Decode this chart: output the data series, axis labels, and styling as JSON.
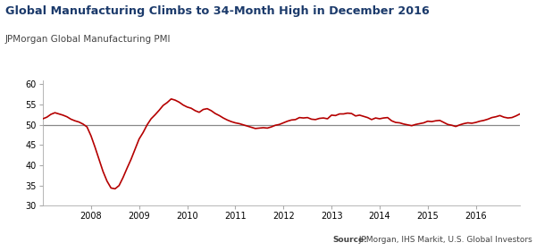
{
  "title": "Global Manufacturing Climbs to 34-Month High in December 2016",
  "subtitle": "JPMorgan Global Manufacturing PMI",
  "source_bold": "Source:",
  "source_rest": " JPMorgan, IHS Markit, U.S. Global Investors",
  "title_color": "#1b3a6b",
  "subtitle_color": "#444444",
  "source_color": "#444444",
  "line_color": "#b50000",
  "hline_color": "#888888",
  "hline_y": 50,
  "background_color": "#ffffff",
  "ylim": [
    30,
    61
  ],
  "yticks": [
    30,
    35,
    40,
    45,
    50,
    55,
    60
  ],
  "x_labels": [
    "2008",
    "2009",
    "2010",
    "2011",
    "2012",
    "2013",
    "2014",
    "2015",
    "2016"
  ],
  "pmi_data": [
    51.5,
    51.9,
    52.6,
    53.0,
    52.7,
    52.4,
    52.0,
    51.4,
    51.0,
    50.7,
    50.2,
    49.5,
    47.3,
    44.5,
    41.5,
    38.5,
    36.1,
    34.4,
    34.2,
    35.0,
    37.0,
    39.3,
    41.5,
    44.0,
    46.5,
    48.1,
    50.0,
    51.5,
    52.5,
    53.6,
    54.8,
    55.5,
    56.4,
    56.1,
    55.6,
    54.9,
    54.4,
    54.1,
    53.5,
    53.1,
    53.8,
    54.0,
    53.5,
    52.8,
    52.3,
    51.7,
    51.2,
    50.8,
    50.5,
    50.3,
    50.0,
    49.7,
    49.4,
    49.1,
    49.2,
    49.3,
    49.2,
    49.5,
    49.9,
    50.1,
    50.5,
    50.9,
    51.2,
    51.3,
    51.8,
    51.7,
    51.8,
    51.4,
    51.3,
    51.6,
    51.7,
    51.5,
    52.4,
    52.3,
    52.7,
    52.7,
    52.9,
    52.8,
    52.2,
    52.4,
    52.1,
    51.8,
    51.3,
    51.7,
    51.5,
    51.7,
    51.8,
    51.0,
    50.6,
    50.5,
    50.2,
    50.0,
    49.8,
    50.1,
    50.3,
    50.5,
    50.9,
    50.8,
    51.0,
    51.1,
    50.6,
    50.1,
    49.9,
    49.6,
    50.0,
    50.3,
    50.5,
    50.4,
    50.6,
    50.9,
    51.1,
    51.4,
    51.8,
    52.0,
    52.3,
    51.9,
    51.7,
    51.8,
    52.2,
    52.7
  ]
}
